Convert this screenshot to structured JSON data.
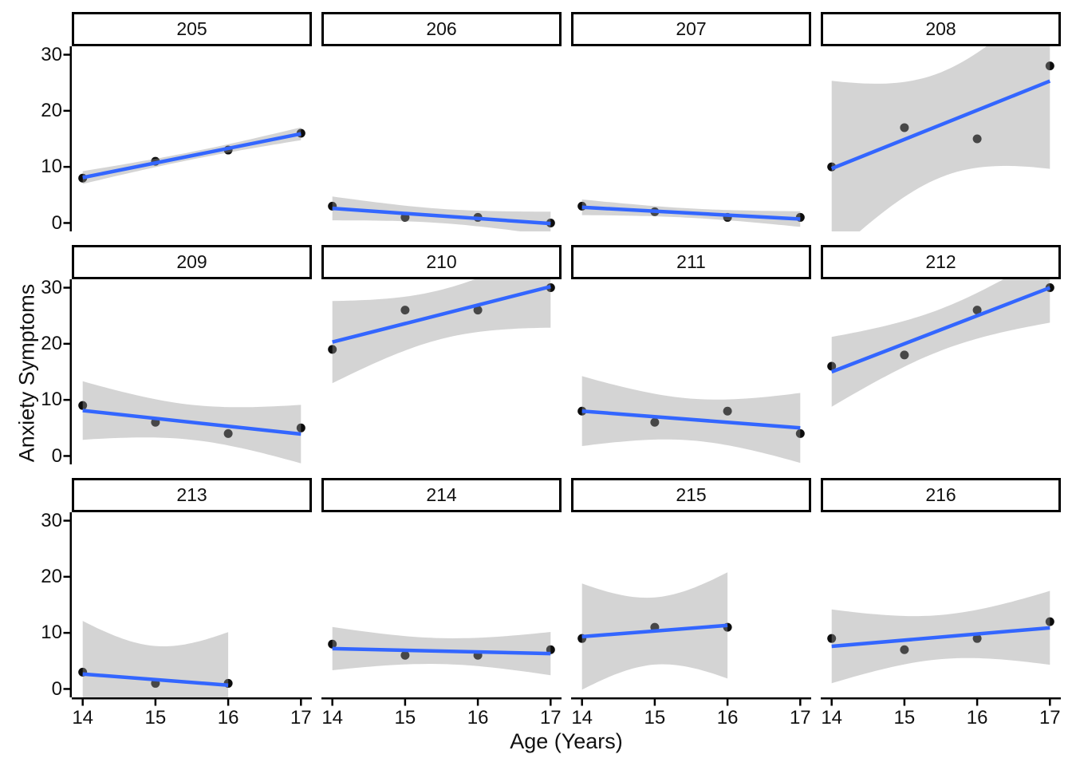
{
  "chart_data": {
    "type": "scatter",
    "title": "",
    "xlabel": "Age (Years)",
    "ylabel": "Anxiety Symptoms",
    "facet_variable_values": [
      "205",
      "206",
      "207",
      "208",
      "209",
      "210",
      "211",
      "212",
      "213",
      "214",
      "215",
      "216"
    ],
    "x_ticks": [
      14,
      15,
      16,
      17
    ],
    "y_ticks": [
      0,
      10,
      20,
      30
    ],
    "xlim": [
      13.85,
      17.15
    ],
    "ylim": [
      -1.5,
      31.5
    ],
    "grid": "off",
    "legend_position": "none",
    "smoother": "linear (lm) with 95% confidence band",
    "facets": [
      {
        "label": "205",
        "x": [
          14,
          15,
          16,
          17
        ],
        "y": [
          8,
          11,
          13,
          16
        ]
      },
      {
        "label": "206",
        "x": [
          14,
          15,
          16,
          17
        ],
        "y": [
          3,
          1,
          1,
          0
        ]
      },
      {
        "label": "207",
        "x": [
          14,
          15,
          16,
          17
        ],
        "y": [
          3,
          2,
          1,
          1
        ]
      },
      {
        "label": "208",
        "x": [
          14,
          15,
          16,
          17
        ],
        "y": [
          10,
          17,
          15,
          28
        ]
      },
      {
        "label": "209",
        "x": [
          14,
          15,
          16,
          17
        ],
        "y": [
          9,
          6,
          4,
          5
        ]
      },
      {
        "label": "210",
        "x": [
          14,
          15,
          16,
          17
        ],
        "y": [
          19,
          26,
          26,
          30
        ]
      },
      {
        "label": "211",
        "x": [
          14,
          15,
          16,
          17
        ],
        "y": [
          8,
          6,
          8,
          4
        ]
      },
      {
        "label": "212",
        "x": [
          14,
          15,
          16,
          17
        ],
        "y": [
          16,
          18,
          26,
          30
        ]
      },
      {
        "label": "213",
        "x": [
          14,
          15,
          16
        ],
        "y": [
          3,
          1,
          1
        ]
      },
      {
        "label": "214",
        "x": [
          14,
          15,
          16,
          17
        ],
        "y": [
          8,
          6,
          6,
          7
        ]
      },
      {
        "label": "215",
        "x": [
          14,
          15,
          16
        ],
        "y": [
          9,
          11,
          11
        ]
      },
      {
        "label": "216",
        "x": [
          14,
          15,
          16,
          17
        ],
        "y": [
          9,
          7,
          9,
          12
        ]
      }
    ],
    "colors": {
      "smooth_line": "#3366FF",
      "confidence_band": "#D6D6D6",
      "point": "#0D0D0D",
      "axis_line": "#000000",
      "strip_border": "#000000",
      "strip_background": "#FFFFFF",
      "panel_background": "#FFFFFF",
      "text": "#111111"
    }
  }
}
